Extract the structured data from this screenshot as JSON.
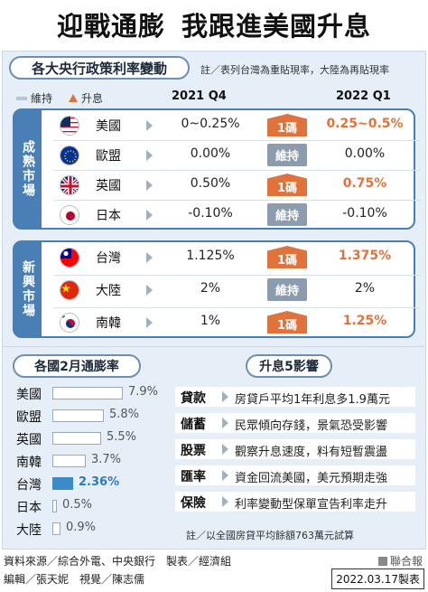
{
  "headline": {
    "left": "迎戰通膨",
    "right": "我跟進美國升息"
  },
  "rates": {
    "section_title": "各大央行政策利率變動",
    "note": "註／表列台灣為重貼現率，大陸為再貼現率",
    "legend": {
      "hold": "維持",
      "hike": "升息"
    },
    "col_2021": "2021 Q4",
    "col_2022": "2022 Q1",
    "groups": [
      {
        "label": "成熟市場",
        "rows": [
          {
            "country": "美國",
            "flag": "us-flag-icon",
            "q4_2021": "0~0.25%",
            "action": "1碼",
            "action_type": "up",
            "q1_2022": "0.25~0.5%"
          },
          {
            "country": "歐盟",
            "flag": "eu-flag-icon",
            "q4_2021": "0.00%",
            "action": "維持",
            "action_type": "hold",
            "q1_2022": "0.00%"
          },
          {
            "country": "英國",
            "flag": "uk-flag-icon",
            "q4_2021": "0.50%",
            "action": "1碼",
            "action_type": "up",
            "q1_2022": "0.75%"
          },
          {
            "country": "日本",
            "flag": "jp-flag-icon",
            "q4_2021": "-0.10%",
            "action": "維持",
            "action_type": "hold",
            "q1_2022": "-0.10%"
          }
        ]
      },
      {
        "label": "新興市場",
        "rows": [
          {
            "country": "台灣",
            "flag": "tw-flag-icon",
            "q4_2021": "1.125%",
            "action": "1碼",
            "action_type": "up",
            "q1_2022": "1.375%"
          },
          {
            "country": "大陸",
            "flag": "cn-flag-icon",
            "q4_2021": "2%",
            "action": "維持",
            "action_type": "hold",
            "q1_2022": "2%"
          },
          {
            "country": "南韓",
            "flag": "kr-flag-icon",
            "q4_2021": "1%",
            "action": "1碼",
            "action_type": "up",
            "q1_2022": "1.25%"
          }
        ]
      }
    ]
  },
  "inflation": {
    "title": "各國2月通膨率",
    "items": [
      {
        "country": "美國",
        "label": "7.9%",
        "value": 7.9,
        "highlight": false
      },
      {
        "country": "歐盟",
        "label": "5.8%",
        "value": 5.8,
        "highlight": false
      },
      {
        "country": "英國",
        "label": "5.5%",
        "value": 5.5,
        "highlight": false
      },
      {
        "country": "南韓",
        "label": "3.7%",
        "value": 3.7,
        "highlight": false
      },
      {
        "country": "台灣",
        "label": "2.36%",
        "value": 2.36,
        "highlight": true
      },
      {
        "country": "日本",
        "label": "0.5%",
        "value": 0.5,
        "highlight": false
      },
      {
        "country": "大陸",
        "label": "0.9%",
        "value": 0.9,
        "highlight": false
      }
    ]
  },
  "impact": {
    "title": "升息5影響",
    "items": [
      {
        "key": "貸款",
        "text": "房貸戶平均1年利息多1.9萬元"
      },
      {
        "key": "儲蓄",
        "text": "民眾傾向存錢，景氣恐受影響"
      },
      {
        "key": "股票",
        "text": "觀察升息速度，料有短暫震盪"
      },
      {
        "key": "匯率",
        "text": "資金回流美國，美元預期走強"
      },
      {
        "key": "保險",
        "text": "利率變動型保單宣告利率走升"
      }
    ],
    "note": "註／以全國房貸平均餘額763萬元試算"
  },
  "footer": {
    "source": "資料來源／綜合外電、中央銀行　製表／經濟組",
    "credits": "編輯／張天妮　視覺／陳志儒",
    "publisher": "聯合報",
    "date_stamp": "2022.03.17製表"
  },
  "colors": {
    "hike": "#e0733b",
    "hold": "#8b9cae",
    "frame": "#4a7fb5",
    "highlight": "#3a8bc8"
  }
}
